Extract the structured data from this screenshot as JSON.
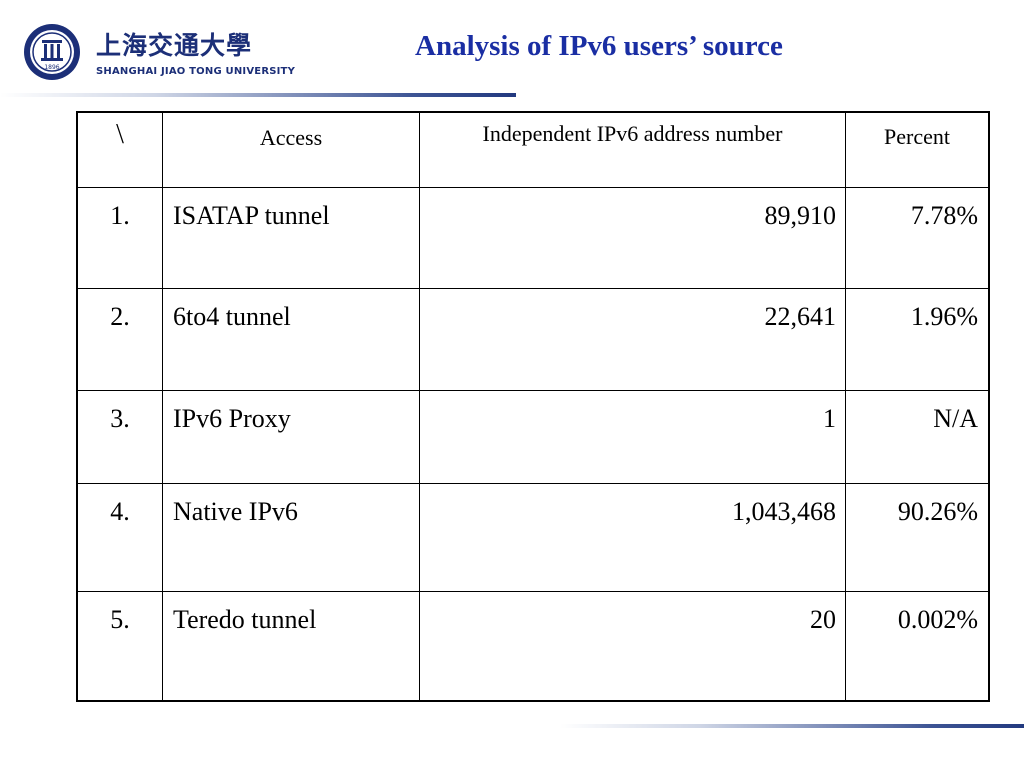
{
  "logo": {
    "emblem_icon": "university-seal-icon",
    "chinese_name": "上海交通大學",
    "english_name": "SHANGHAI  JIAO TONG  UNIVERSITY",
    "seal_year": "1896"
  },
  "slide": {
    "title": "Analysis of IPv6 users’ source"
  },
  "table": {
    "headers": [
      "\\",
      "Access",
      "Independent IPv6 address number",
      "Percent"
    ],
    "rows": [
      {
        "num": "1.",
        "access": "ISATAP tunnel",
        "count": "89,910",
        "percent": "7.78%"
      },
      {
        "num": "2.",
        "access": "6to4 tunnel",
        "count": "22,641",
        "percent": "1.96%"
      },
      {
        "num": "3.",
        "access": "IPv6 Proxy",
        "count": "1",
        "percent": "N/A"
      },
      {
        "num": "4.",
        "access": "Native IPv6",
        "count": "1,043,468",
        "percent": "90.26%"
      },
      {
        "num": "5.",
        "access": "Teredo tunnel",
        "count": "20",
        "percent": "0.002%"
      }
    ]
  },
  "colors": {
    "title": "#1a2ea3",
    "logo": "#1c2f78",
    "rule": "#22397f"
  }
}
